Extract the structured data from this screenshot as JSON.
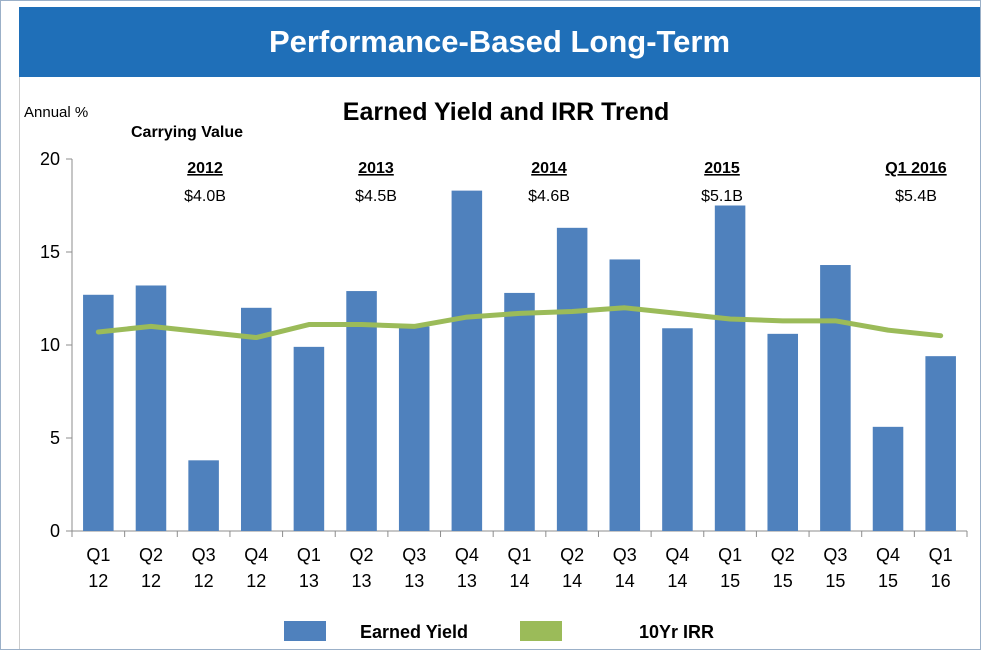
{
  "banner": {
    "title": "Performance-Based Long-Term"
  },
  "chart_data": {
    "type": "bar",
    "title": "Earned Yield and IRR Trend",
    "ylabel": "Annual %",
    "ylim": [
      0,
      20
    ],
    "yticks": [
      0,
      5,
      10,
      15,
      20
    ],
    "categories": [
      [
        "Q1",
        "12"
      ],
      [
        "Q2",
        "12"
      ],
      [
        "Q3",
        "12"
      ],
      [
        "Q4",
        "12"
      ],
      [
        "Q1",
        "13"
      ],
      [
        "Q2",
        "13"
      ],
      [
        "Q3",
        "13"
      ],
      [
        "Q4",
        "13"
      ],
      [
        "Q1",
        "14"
      ],
      [
        "Q2",
        "14"
      ],
      [
        "Q3",
        "14"
      ],
      [
        "Q4",
        "14"
      ],
      [
        "Q1",
        "15"
      ],
      [
        "Q2",
        "15"
      ],
      [
        "Q3",
        "15"
      ],
      [
        "Q4",
        "15"
      ],
      [
        "Q1",
        "16"
      ]
    ],
    "series": [
      {
        "name": "Earned Yield",
        "type": "bar",
        "color": "#4f81bd",
        "values": [
          12.7,
          13.2,
          3.8,
          12.0,
          9.9,
          12.9,
          11.0,
          18.3,
          12.8,
          16.3,
          14.6,
          10.9,
          17.5,
          10.6,
          14.3,
          5.6,
          9.4
        ]
      },
      {
        "name": "10Yr IRR",
        "type": "line",
        "color": "#9bbb59",
        "values": [
          10.7,
          11.0,
          10.7,
          10.4,
          11.1,
          11.1,
          11.0,
          11.5,
          11.7,
          11.8,
          12.0,
          11.7,
          11.4,
          11.3,
          11.3,
          10.8,
          10.5
        ]
      }
    ],
    "carrying_value": {
      "label": "Carrying Value",
      "periods": [
        {
          "year": "2012",
          "value": "$4.0B"
        },
        {
          "year": "2013",
          "value": "$4.5B"
        },
        {
          "year": "2014",
          "value": "$4.6B"
        },
        {
          "year": "2015",
          "value": "$5.1B"
        },
        {
          "year": "Q1 2016",
          "value": "$5.4B"
        }
      ]
    },
    "grid": false,
    "legend_position": "bottom"
  }
}
